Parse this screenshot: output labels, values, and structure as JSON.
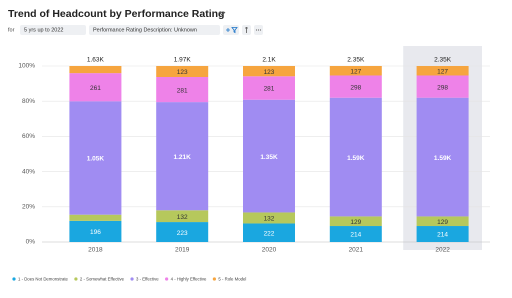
{
  "header": {
    "for_label": "for",
    "chips": [
      "5 yrs up to 2022",
      "Performance Rating Description: Unknown"
    ]
  },
  "chart_data": {
    "type": "bar",
    "stacking": "percent",
    "title": "Trend of Headcount by Performance Rating",
    "categories": [
      "2018",
      "2019",
      "2020",
      "2021",
      "2022"
    ],
    "highlight": "2022",
    "total_labels": [
      "1.63K",
      "1.97K",
      "2.1K",
      "2.35K",
      "2.35K"
    ],
    "series": [
      {
        "name": "1 - Does Not Demonstrate",
        "color": "#1aa7e0",
        "values": [
          196,
          223,
          222,
          214,
          214
        ],
        "value_labels": [
          "196",
          "223",
          "222",
          "214",
          "214"
        ]
      },
      {
        "name": "2 - Somewhat Effective",
        "color": "#b6c85c",
        "values": [
          57,
          132,
          132,
          129,
          129
        ],
        "value_labels": [
          null,
          "132",
          "132",
          "129",
          "129"
        ]
      },
      {
        "name": "3 - Effective",
        "color": "#a08cf2",
        "values": [
          1050,
          1210,
          1350,
          1590,
          1590
        ],
        "value_labels": [
          "1.05K",
          "1.21K",
          "1.35K",
          "1.59K",
          "1.59K"
        ]
      },
      {
        "name": "4 - Highly Effective",
        "color": "#ee82e8",
        "values": [
          261,
          281,
          281,
          298,
          298
        ],
        "value_labels": [
          "261",
          "281",
          "281",
          "298",
          "298"
        ]
      },
      {
        "name": "5 - Role Model",
        "color": "#f6a53f",
        "values": [
          66,
          123,
          123,
          127,
          127
        ],
        "value_labels": [
          null,
          "123",
          "123",
          "127",
          "127"
        ]
      }
    ],
    "ylim": [
      0,
      100
    ],
    "yticks": [
      {
        "value": 0,
        "label": "0%"
      },
      {
        "value": 20,
        "label": "20%"
      },
      {
        "value": 40,
        "label": "40%"
      },
      {
        "value": 60,
        "label": "60%"
      },
      {
        "value": 80,
        "label": "80%"
      },
      {
        "value": 100,
        "label": "100%"
      }
    ],
    "grid": true
  }
}
